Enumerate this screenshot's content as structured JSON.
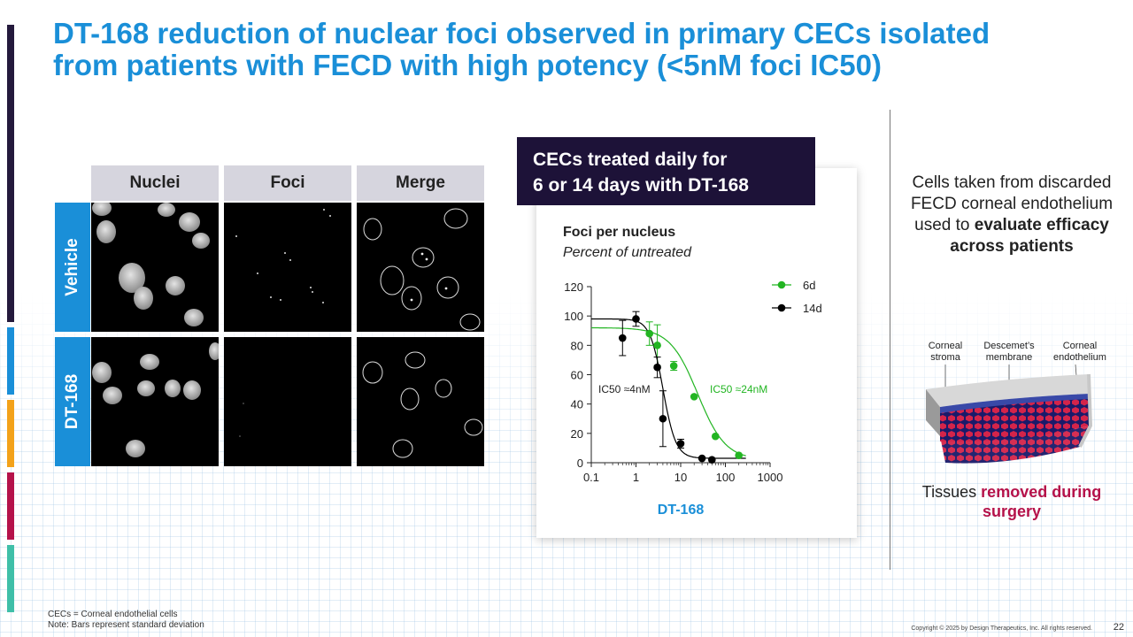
{
  "title": {
    "line1": "DT-168 reduction of nuclear foci observed in primary CECs isolated",
    "line2": "from patients with FECD with high potency (<5nM foci IC50)"
  },
  "colors": {
    "accent_blue": "#1a8fd8",
    "banner_navy": "#1d1238",
    "series_6d": "#22b522",
    "series_14d": "#000000",
    "highlight_red": "#b5124a",
    "side_bars": [
      "#241a3c",
      "#1a8fd8",
      "#f3a21a",
      "#b5124a",
      "#3fbfa8"
    ]
  },
  "microscopy": {
    "columns": [
      "Nuclei",
      "Foci",
      "Merge"
    ],
    "rows": [
      "Vehicle",
      "DT-168"
    ]
  },
  "card": {
    "banner_line1": "CECs treated daily for",
    "banner_line2": "6 or 14 days with DT-168"
  },
  "chart_data": {
    "type": "scatter",
    "title": "Foci per nucleus",
    "subtitle": "Percent of untreated",
    "xlabel": "DT-168",
    "ylabel": "",
    "xscale": "log",
    "xlim": [
      0.1,
      1000
    ],
    "ylim": [
      0,
      120
    ],
    "x_ticks": [
      "0.1",
      "1",
      "10",
      "100",
      "1000"
    ],
    "y_ticks": [
      "0",
      "20",
      "40",
      "60",
      "80",
      "100",
      "120"
    ],
    "legend_position": "top-right",
    "series": [
      {
        "name": "6d",
        "color": "#22b522",
        "points": [
          {
            "x": 2,
            "y": 88,
            "err": 8
          },
          {
            "x": 3,
            "y": 80,
            "err": 14
          },
          {
            "x": 7,
            "y": 66,
            "err": 3
          },
          {
            "x": 20,
            "y": 45,
            "err": 0
          },
          {
            "x": 60,
            "y": 18,
            "err": 0
          },
          {
            "x": 200,
            "y": 5,
            "err": 0
          }
        ],
        "fit": {
          "top": 92,
          "bottom": 2,
          "ic50": 24,
          "hill": 1.4
        }
      },
      {
        "name": "14d",
        "color": "#000000",
        "points": [
          {
            "x": 0.5,
            "y": 85,
            "err": 12
          },
          {
            "x": 1,
            "y": 98,
            "err": 5
          },
          {
            "x": 3,
            "y": 65,
            "err": 7
          },
          {
            "x": 4,
            "y": 30,
            "err": 19
          },
          {
            "x": 10,
            "y": 13,
            "err": 3
          },
          {
            "x": 30,
            "y": 3,
            "err": 0
          },
          {
            "x": 50,
            "y": 2,
            "err": 0
          }
        ],
        "fit": {
          "top": 98,
          "bottom": 3,
          "ic50": 4,
          "hill": 3
        }
      }
    ],
    "annotations": [
      {
        "text": "IC50 ≈4nM",
        "series": "14d"
      },
      {
        "text": "IC50 ≈24nM",
        "series": "6d"
      }
    ]
  },
  "right_panel": {
    "text_plain": "Cells taken from discarded FECD corneal endothelium used to",
    "text_bold": "evaluate efficacy across patients",
    "labels": [
      {
        "line1": "Corneal",
        "line2": "stroma"
      },
      {
        "line1": "Descemet’s",
        "line2": "membrane"
      },
      {
        "line1": "Corneal",
        "line2": "endothelium"
      }
    ],
    "caption_plain": "Tissues",
    "caption_red": "removed during surgery"
  },
  "footnotes": {
    "line1": "CECs = Corneal endothelial cells",
    "line2": "Note: Bars represent standard deviation"
  },
  "copyright": "Copyright © 2025 by Design Therapeutics, Inc. All rights reserved.",
  "page_number": "22"
}
